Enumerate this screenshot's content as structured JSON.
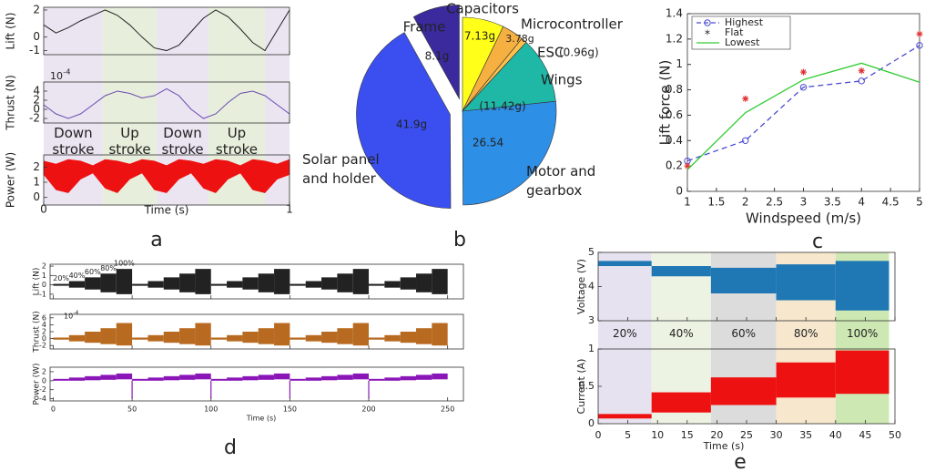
{
  "chart_data": [
    {
      "type": "subplots",
      "panel": "a",
      "xlabel": "Time (s)",
      "xlim": [
        0,
        1
      ],
      "xticks": [
        0,
        1
      ],
      "x": [
        0,
        0.05,
        0.1,
        0.15,
        0.2,
        0.25,
        0.3,
        0.35,
        0.4,
        0.45,
        0.5,
        0.55,
        0.6,
        0.65,
        0.7,
        0.75,
        0.8,
        0.85,
        0.9,
        0.95,
        1
      ],
      "regions": [
        {
          "x": [
            0,
            0.24
          ],
          "color": "#ebe4f1",
          "label": [
            "Down",
            "stroke"
          ]
        },
        {
          "x": [
            0.24,
            0.46
          ],
          "color": "#e7efdc",
          "label": [
            "Up",
            "stroke"
          ]
        },
        {
          "x": [
            0.46,
            0.67
          ],
          "color": "#ebe4f1",
          "label": [
            "Down",
            "stroke"
          ]
        },
        {
          "x": [
            0.67,
            0.9
          ],
          "color": "#e7efdc",
          "label": [
            "Up",
            "stroke"
          ]
        },
        {
          "x": [
            0.9,
            1
          ],
          "color": "#ebe4f1"
        }
      ],
      "subplots": [
        {
          "type": "line",
          "ylabel": "Lift (N)",
          "ylim": [
            -1.3,
            2.2
          ],
          "yticks": [
            -1,
            0,
            2
          ],
          "color": "#222222",
          "values": [
            0.9,
            0.3,
            0.7,
            1.2,
            1.6,
            2.0,
            1.6,
            0.9,
            0.0,
            -0.8,
            -1.0,
            -0.6,
            0.4,
            1.4,
            2.0,
            1.5,
            0.6,
            -0.4,
            -1.0,
            0.5,
            2.0
          ]
        },
        {
          "type": "line",
          "ylabel": "Thrust (N)",
          "multiplier": {
            "base": "10",
            "exponent": "-4"
          },
          "ylim": [
            -3,
            6
          ],
          "yticks": [
            -2,
            0,
            2,
            4
          ],
          "color": "#6a4ab0",
          "values": [
            1,
            -1,
            -2,
            -1,
            1,
            3,
            4,
            3.5,
            2.5,
            3,
            4.5,
            3,
            0,
            -2,
            -1,
            1.5,
            3.5,
            4,
            3,
            1,
            -1
          ]
        },
        {
          "type": "band",
          "ylabel": "Power (W)",
          "ylim": [
            -0.5,
            2.8
          ],
          "yticks": [
            0,
            1,
            2
          ],
          "color": "#ee1111",
          "upper": [
            2.4,
            2.2,
            2.5,
            2.4,
            2.1,
            2.5,
            2.4,
            2.2,
            2.5,
            2.4,
            2.1,
            2.5,
            2.4,
            2.2,
            2.5,
            2.4,
            2.1,
            2.5,
            2.4,
            2.2,
            2.5
          ],
          "lower": [
            1.5,
            0.5,
            0.3,
            1.2,
            1.6,
            0.6,
            0.3,
            1.2,
            1.6,
            0.5,
            0.3,
            1.2,
            1.6,
            0.6,
            0.3,
            1.2,
            1.6,
            0.5,
            0.3,
            1.2,
            1.5
          ]
        }
      ]
    },
    {
      "type": "pie",
      "panel": "b",
      "categories": [
        "Capacitors",
        "Microcontroller",
        "ESC",
        "Wings",
        [
          "Motor and",
          "gearbox"
        ],
        [
          "Solar panel",
          "and holder"
        ],
        "Frame"
      ],
      "values": [
        7.13,
        3.78,
        0.96,
        11.42,
        26.54,
        41.9,
        8.1
      ],
      "value_labels": [
        "7.13g",
        "3.78g",
        "(0.96g)",
        "(11.42g)",
        "26.54",
        "41.9g",
        "8.1g"
      ],
      "colors": [
        "#ffff1a",
        "#f5b041",
        "#ffc04a",
        "#1fb8a6",
        "#2e8fe6",
        "#3b4ff0",
        "#3a2a9e"
      ],
      "explode": [
        false,
        false,
        false,
        false,
        false,
        true,
        true
      ]
    },
    {
      "type": "line",
      "panel": "c",
      "xlabel": "Windspeed (m/s)",
      "ylabel": "Lift force (N)",
      "x": [
        1,
        2,
        3,
        4,
        5
      ],
      "xlim": [
        1,
        5
      ],
      "xticks": [
        1,
        1.5,
        2,
        2.5,
        3,
        3.5,
        4,
        4.5,
        5
      ],
      "ylim": [
        0,
        1.4
      ],
      "yticks": [
        0,
        0.2,
        0.4,
        0.6,
        0.8,
        1,
        1.2,
        1.4
      ],
      "legend": "upper left",
      "series": [
        {
          "name": "Highest",
          "color": "#4b4bd0",
          "linestyle": "dashed",
          "marker": "o",
          "values": [
            0.24,
            0.4,
            0.82,
            0.87,
            1.15
          ]
        },
        {
          "name": "Flat",
          "color": "#e03030",
          "linestyle": "none",
          "marker": "*",
          "values": [
            0.2,
            0.73,
            0.94,
            0.95,
            1.24
          ]
        },
        {
          "name": "Lowest",
          "color": "#33cc33",
          "linestyle": "solid",
          "marker": null,
          "values": [
            0.17,
            0.62,
            0.88,
            1.01,
            0.86
          ]
        }
      ]
    },
    {
      "type": "subplots",
      "panel": "d",
      "xlabel": "Time (s)",
      "xlim": [
        -2,
        260
      ],
      "xticks": [
        0,
        50,
        100,
        150,
        200,
        250
      ],
      "edges": [
        0,
        10,
        20,
        30,
        40,
        50,
        60,
        70,
        80,
        90,
        100,
        110,
        120,
        130,
        140,
        150,
        160,
        170,
        180,
        190,
        200,
        210,
        220,
        230,
        240,
        250
      ],
      "subplots": [
        {
          "type": "step-band",
          "ylabel": "Lift (N)",
          "ylim": [
            -1.5,
            2.2
          ],
          "yticks": [
            -1,
            0,
            1,
            2
          ],
          "color": "#222222",
          "upper": [
            0.1,
            0.4,
            0.8,
            1.2,
            1.7,
            0.1,
            0.4,
            0.8,
            1.2,
            1.7,
            0.1,
            0.4,
            0.8,
            1.2,
            1.7,
            0.1,
            0.4,
            0.8,
            1.2,
            1.7,
            0.1,
            0.4,
            0.8,
            1.2,
            1.7
          ],
          "lower": [
            -0.1,
            -0.3,
            -0.5,
            -0.8,
            -1.0,
            -0.1,
            -0.3,
            -0.5,
            -0.8,
            -1.0,
            -0.1,
            -0.3,
            -0.5,
            -0.8,
            -1.0,
            -0.1,
            -0.3,
            -0.5,
            -0.8,
            -1.0,
            -0.1,
            -0.3,
            -0.5,
            -0.8,
            -1.0
          ],
          "annotations": [
            {
              "text": "20%",
              "x": 5
            },
            {
              "text": "40%",
              "x": 15
            },
            {
              "text": "60%",
              "x": 25
            },
            {
              "text": "80%",
              "x": 35
            },
            {
              "text": "100%",
              "x": 45
            }
          ]
        },
        {
          "type": "step-band",
          "ylabel": "Thrust (N)",
          "multiplier": {
            "base": "10",
            "exponent": "-4"
          },
          "ylim": [
            -3,
            7
          ],
          "yticks": [
            -2,
            0,
            2,
            4,
            6
          ],
          "color": "#b86a20",
          "upper": [
            0.3,
            1,
            2,
            3,
            4.5,
            0.3,
            1,
            2,
            3,
            4.5,
            0.3,
            1,
            2,
            3,
            4.5,
            0.3,
            1,
            2,
            3,
            4.5,
            0.3,
            1,
            2,
            3,
            4.5
          ],
          "lower": [
            -0.3,
            -0.8,
            -1.2,
            -1.6,
            -2,
            -0.3,
            -0.8,
            -1.2,
            -1.6,
            -2,
            -0.3,
            -0.8,
            -1.2,
            -1.6,
            -2,
            -0.3,
            -0.8,
            -1.2,
            -1.6,
            -2,
            -0.3,
            -0.8,
            -1.2,
            -1.6,
            -2
          ]
        },
        {
          "type": "step-band",
          "ylabel": "Power (W)",
          "ylim": [
            -4.5,
            3
          ],
          "yticks": [
            -4,
            -2,
            0,
            2
          ],
          "color": "#8a16b8",
          "upper": [
            0.4,
            0.7,
            1,
            1.3,
            1.6,
            0.4,
            0.7,
            1,
            1.3,
            1.6,
            0.4,
            0.7,
            1,
            1.3,
            1.6,
            0.4,
            0.7,
            1,
            1.3,
            1.6,
            0.4,
            0.7,
            1,
            1.3,
            1.6
          ],
          "lower": [
            0,
            0,
            0.1,
            0.2,
            0.3,
            0,
            0,
            0.1,
            0.2,
            0.3,
            0,
            0,
            0.1,
            0.2,
            0.3,
            0,
            0,
            0.1,
            0.2,
            0.3,
            0,
            0,
            0.1,
            0.2,
            0.3
          ],
          "spikes": {
            "x": [
              50,
              100,
              150,
              200
            ],
            "values": [
              -4,
              -4,
              -4,
              -4
            ]
          }
        }
      ]
    },
    {
      "type": "subplots",
      "panel": "e",
      "xlabel": "Time (s)",
      "xlim": [
        0,
        50
      ],
      "xticks": [
        0,
        5,
        10,
        15,
        20,
        25,
        30,
        35,
        40,
        45,
        50
      ],
      "edges": [
        0,
        9,
        19,
        30,
        40,
        49
      ],
      "regions": [
        {
          "x": [
            0,
            9
          ],
          "color": "#e6e2ef",
          "label": [
            "20%"
          ]
        },
        {
          "x": [
            9,
            19
          ],
          "color": "#edf3e3",
          "label": [
            "40%"
          ]
        },
        {
          "x": [
            19,
            30
          ],
          "color": "#dcdcdc",
          "label": [
            "60%"
          ]
        },
        {
          "x": [
            30,
            40
          ],
          "color": "#f6e7cd",
          "label": [
            "80%"
          ]
        },
        {
          "x": [
            40,
            49
          ],
          "color": "#cde8b2",
          "label": [
            "100%"
          ]
        }
      ],
      "subplots": [
        {
          "type": "step-band",
          "ylabel": "Voltage (V)",
          "ylim": [
            3,
            5
          ],
          "yticks": [
            3,
            4,
            5
          ],
          "color": "#1f77b4",
          "upper": [
            4.75,
            4.6,
            4.55,
            4.65,
            4.75
          ],
          "lower": [
            4.6,
            4.3,
            3.8,
            3.6,
            3.3
          ]
        },
        {
          "type": "step-band",
          "ylabel": "Current (A)",
          "ylim": [
            0,
            1
          ],
          "yticks": [
            0,
            0.5,
            1
          ],
          "color": "#ee1111",
          "upper": [
            0.13,
            0.42,
            0.62,
            0.82,
            0.98
          ],
          "lower": [
            0.07,
            0.15,
            0.25,
            0.35,
            0.4
          ]
        }
      ]
    }
  ]
}
